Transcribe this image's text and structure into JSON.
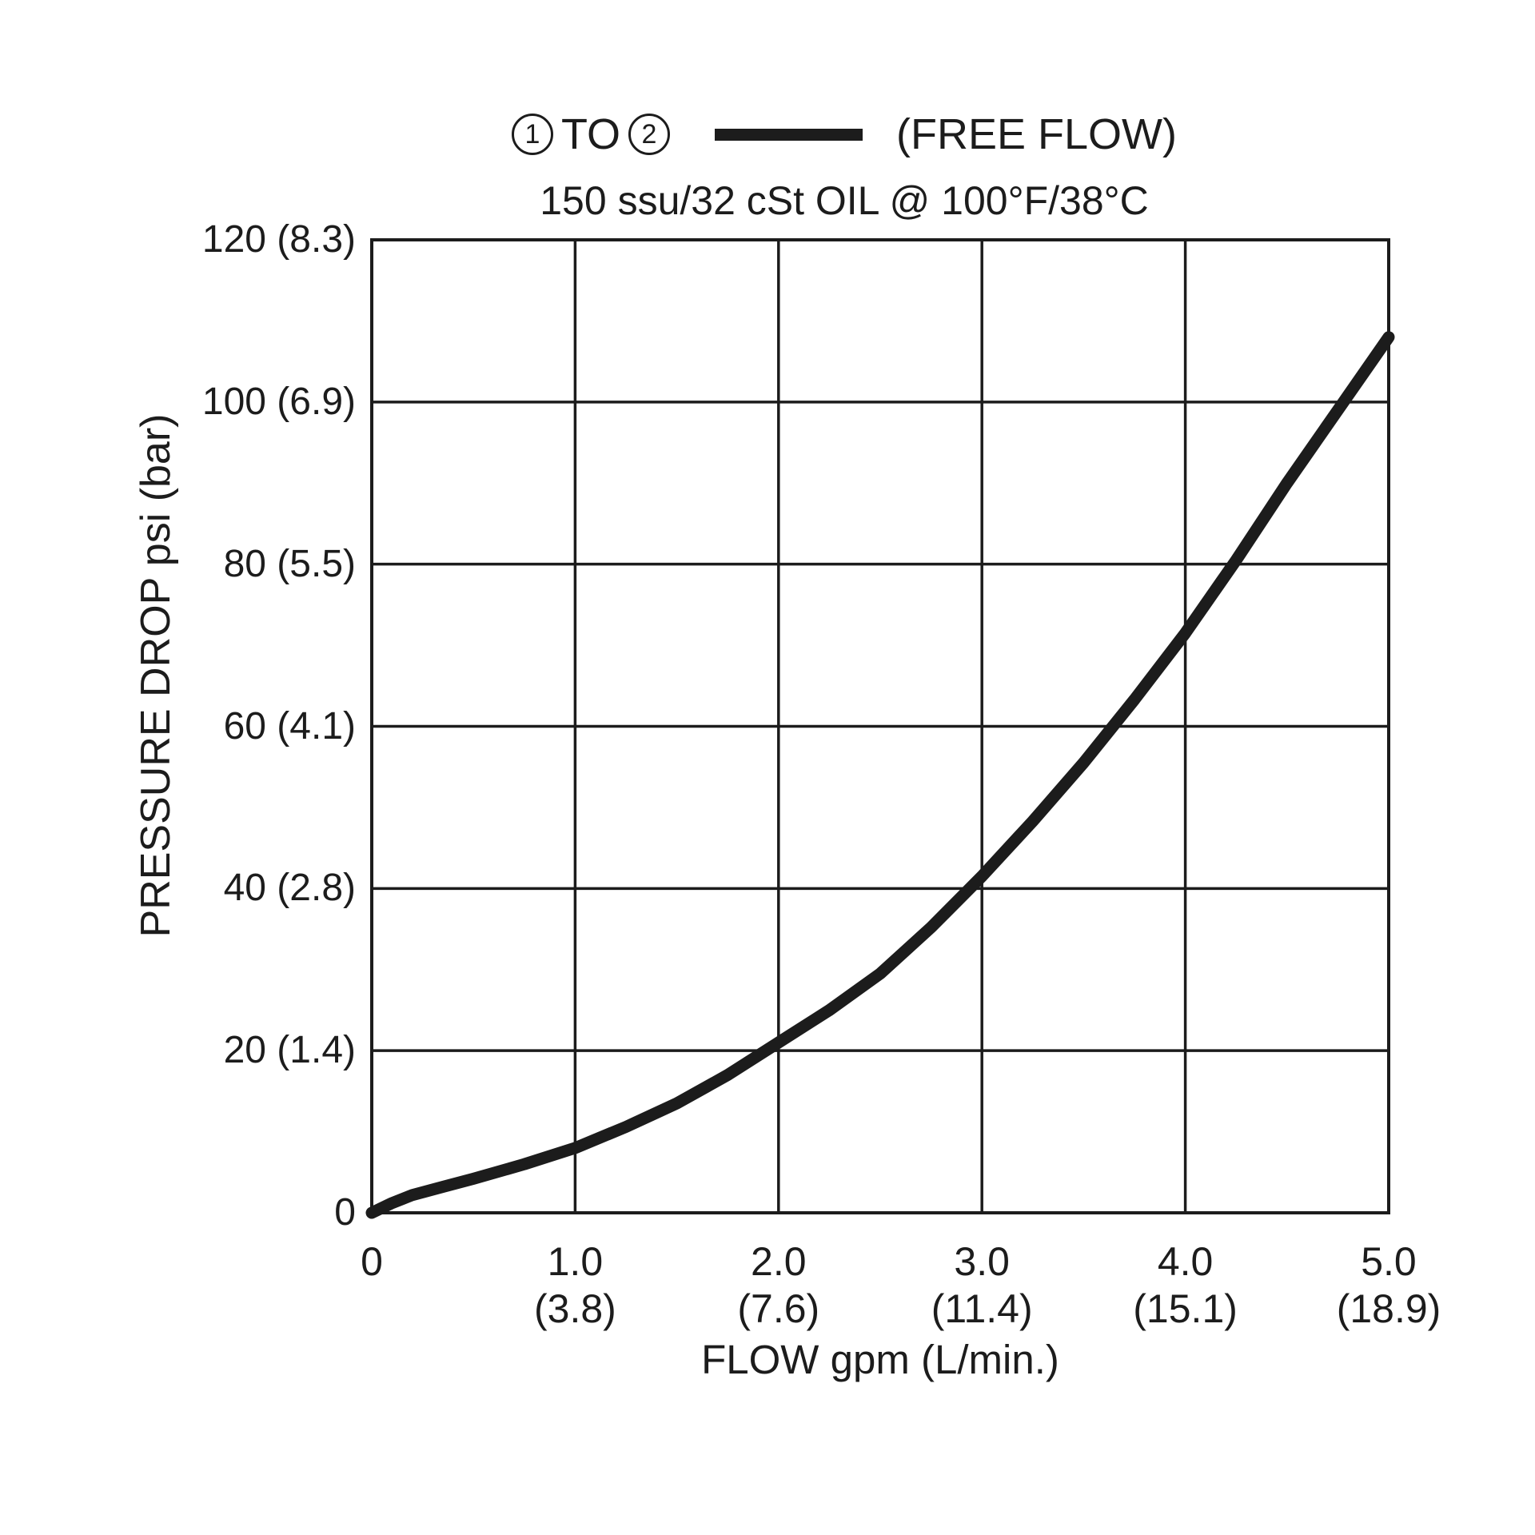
{
  "chart_data": {
    "type": "line",
    "legend": {
      "port_from": "1",
      "connector": "TO",
      "port_to": "2",
      "label": "(FREE FLOW)"
    },
    "subtitle": "150 ssu/32 cSt OIL @ 100°F/38°C",
    "xlabel": "FLOW gpm (L/min.)",
    "ylabel": "PRESSURE DROP psi (bar)",
    "xlim": [
      0,
      5
    ],
    "ylim": [
      0,
      120
    ],
    "grid": true,
    "legend_position": "top",
    "ink_color": "#1c1c1c",
    "x_ticks": [
      {
        "v": 0,
        "label": "0",
        "sub": ""
      },
      {
        "v": 1,
        "label": "1.0",
        "sub": "(3.8)"
      },
      {
        "v": 2,
        "label": "2.0",
        "sub": "(7.6)"
      },
      {
        "v": 3,
        "label": "3.0",
        "sub": "(11.4)"
      },
      {
        "v": 4,
        "label": "4.0",
        "sub": "(15.1)"
      },
      {
        "v": 5,
        "label": "5.0",
        "sub": "(18.9)"
      }
    ],
    "y_ticks": [
      {
        "v": 0,
        "label": "0"
      },
      {
        "v": 20,
        "label": "20 (1.4)"
      },
      {
        "v": 40,
        "label": "40 (2.8)"
      },
      {
        "v": 60,
        "label": "60 (4.1)"
      },
      {
        "v": 80,
        "label": "80 (5.5)"
      },
      {
        "v": 100,
        "label": "100 (6.9)"
      },
      {
        "v": 120,
        "label": "120 (8.3)"
      }
    ],
    "series": [
      {
        "name": "1 TO 2 (FREE FLOW)",
        "color": "#1c1c1c",
        "points": [
          [
            0,
            0
          ],
          [
            0.1,
            1.2
          ],
          [
            0.2,
            2.2
          ],
          [
            0.35,
            3.2
          ],
          [
            0.5,
            4.2
          ],
          [
            0.75,
            6.0
          ],
          [
            1.0,
            8.0
          ],
          [
            1.25,
            10.6
          ],
          [
            1.5,
            13.5
          ],
          [
            1.75,
            17.0
          ],
          [
            2.0,
            21.0
          ],
          [
            2.25,
            25.0
          ],
          [
            2.5,
            29.5
          ],
          [
            2.75,
            35.2
          ],
          [
            3.0,
            41.5
          ],
          [
            3.25,
            48.3
          ],
          [
            3.5,
            55.5
          ],
          [
            3.75,
            63.3
          ],
          [
            4.0,
            71.5
          ],
          [
            4.25,
            80.5
          ],
          [
            4.5,
            90.0
          ],
          [
            4.75,
            99.0
          ],
          [
            5.0,
            108.0
          ]
        ]
      }
    ]
  }
}
